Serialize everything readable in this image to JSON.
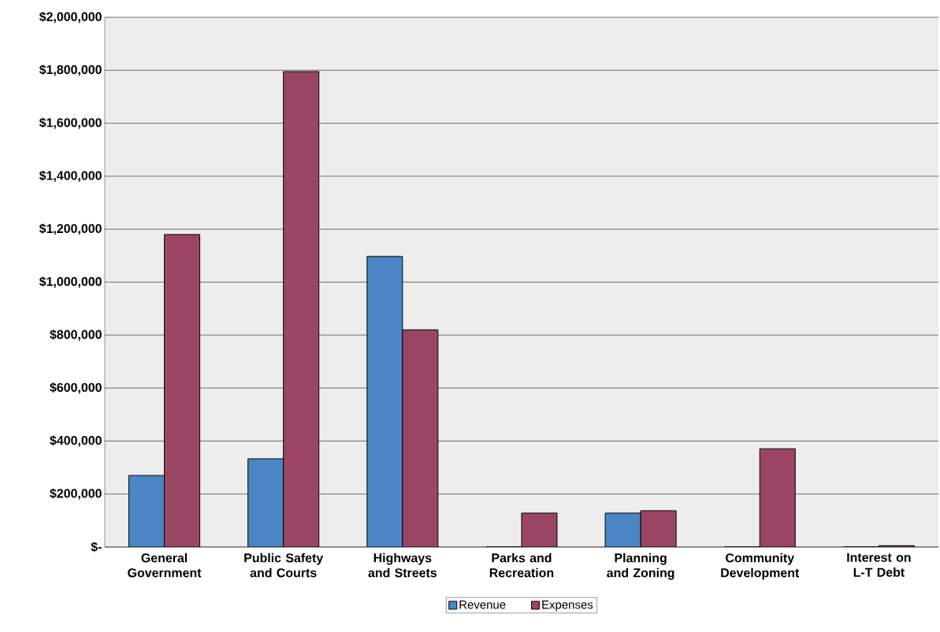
{
  "chart_data": {
    "type": "bar",
    "categories": [
      "General Government",
      "Public Safety and Courts",
      "Highways and Streets",
      "Parks and Recreation",
      "Planning and Zoning",
      "Community Development",
      "Interest on L-T Debt"
    ],
    "series": [
      {
        "name": "Revenue",
        "color": "#4a86c5",
        "values": [
          270000,
          333000,
          1097000,
          0,
          128000,
          0,
          0
        ]
      },
      {
        "name": "Expenses",
        "color": "#9b4564",
        "values": [
          1180000,
          1795000,
          820000,
          128000,
          137000,
          371000,
          5000
        ]
      }
    ],
    "ylim": [
      0,
      2000000
    ],
    "yticks": [
      {
        "value": 0,
        "label": "$-"
      },
      {
        "value": 200000,
        "label": "$200,000"
      },
      {
        "value": 400000,
        "label": "$400,000"
      },
      {
        "value": 600000,
        "label": "$600,000"
      },
      {
        "value": 800000,
        "label": "$800,000"
      },
      {
        "value": 1000000,
        "label": "$1,000,000"
      },
      {
        "value": 1200000,
        "label": "$1,200,000"
      },
      {
        "value": 1400000,
        "label": "$1,400,000"
      },
      {
        "value": 1600000,
        "label": "$1,600,000"
      },
      {
        "value": 1800000,
        "label": "$1,800,000"
      },
      {
        "value": 2000000,
        "label": "$2,000,000"
      }
    ],
    "grid": "y",
    "legend": "bottom"
  }
}
